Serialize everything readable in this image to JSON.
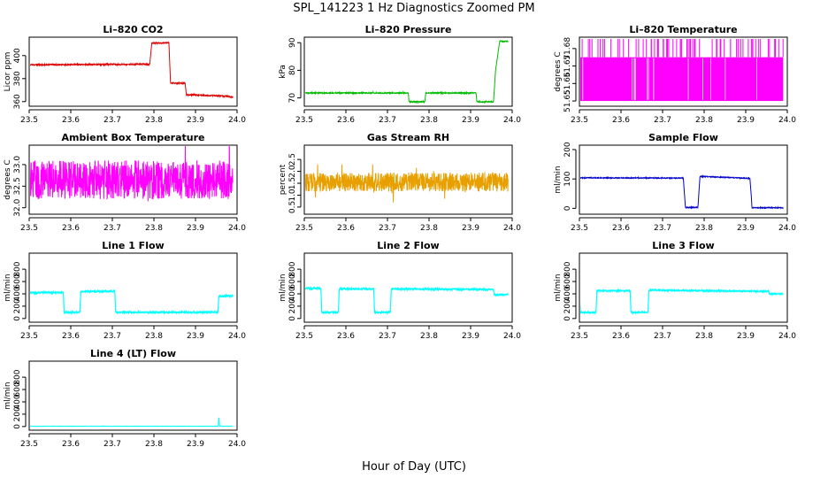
{
  "figure": {
    "title": "SPL_141223  1 Hz Diagnostics Zoomed PM",
    "xlabel": "Hour of Day (UTC)"
  },
  "chart_data": [
    {
      "type": "line",
      "title": "Li–820 CO2",
      "ylabel": "Licor ppm",
      "color": "#e00000",
      "xlim": [
        23.5,
        24.0
      ],
      "ylim": [
        356,
        416
      ],
      "xticks": [
        "23.5",
        "23.6",
        "23.7",
        "23.8",
        "23.9",
        "24.0"
      ],
      "yticks": [
        {
          "v": 360,
          "l": "360"
        },
        {
          "v": 380,
          "l": "380"
        },
        {
          "v": 400,
          "l": "400"
        }
      ],
      "noise": 0.6,
      "x": [
        23.5,
        23.79,
        23.795,
        23.836,
        23.84,
        23.875,
        23.878,
        23.96,
        23.99
      ],
      "y": [
        392,
        392.5,
        411,
        411,
        376,
        376,
        366,
        365,
        364
      ]
    },
    {
      "type": "line",
      "title": "Li–820 Pressure",
      "ylabel": "kPa",
      "color": "#00bb00",
      "xlim": [
        23.5,
        24.0
      ],
      "ylim": [
        67,
        92
      ],
      "xticks": [
        "23.5",
        "23.6",
        "23.7",
        "23.8",
        "23.9",
        "24.0"
      ],
      "yticks": [
        {
          "v": 70,
          "l": "70"
        },
        {
          "v": 80,
          "l": "80"
        },
        {
          "v": 90,
          "l": "90"
        }
      ],
      "noise": 0.2,
      "x": [
        23.5,
        23.75,
        23.752,
        23.79,
        23.792,
        23.913,
        23.915,
        23.955,
        23.96,
        23.97,
        23.99
      ],
      "y": [
        71.8,
        71.8,
        68.6,
        68.6,
        71.8,
        71.8,
        68.6,
        68.6,
        80,
        90.5,
        90.5
      ]
    },
    {
      "type": "line",
      "title": "Li–820 Temperature",
      "ylabel": "degrees C",
      "color": "#ff00ff",
      "xlim": [
        23.5,
        24.0
      ],
      "ylim": [
        51.647,
        51.6865
      ],
      "xticks": [
        "23.5",
        "23.6",
        "23.7",
        "23.8",
        "23.9",
        "24.0"
      ],
      "yticks": [
        {
          "v": 51.65,
          "l": "51.65"
        },
        {
          "v": 51.66,
          "l": "51.66"
        },
        {
          "v": 51.67,
          "l": "51.67"
        },
        {
          "v": 51.68,
          "l": "51.68"
        }
      ],
      "noise": 0,
      "x": [
        23.5,
        23.99
      ],
      "y": [
        51.675,
        51.675
      ],
      "band": [
        51.65,
        51.675
      ],
      "spikes_hi": 51.6855
    },
    {
      "type": "line",
      "title": "Ambient Box Temperature",
      "ylabel": "degrees C",
      "color": "#ff00ff",
      "xlim": [
        23.5,
        24.0
      ],
      "ylim": [
        31.85,
        33.45
      ],
      "xticks": [
        "23.5",
        "23.6",
        "23.7",
        "23.8",
        "23.9",
        "24.0"
      ],
      "yticks": [
        {
          "v": 32.0,
          "l": "32.0"
        },
        {
          "v": 32.5,
          "l": "32.5"
        },
        {
          "v": 33.0,
          "l": "33.0"
        }
      ],
      "noise": 0.45,
      "x": [
        23.5,
        23.99
      ],
      "y": [
        32.65,
        32.65
      ]
    },
    {
      "type": "line",
      "title": "Gas Stream RH",
      "ylabel": "percent",
      "color": "#e8a000",
      "xlim": [
        23.5,
        24.0
      ],
      "ylim": [
        0.2,
        3.1
      ],
      "xticks": [
        "23.5",
        "23.6",
        "23.7",
        "23.8",
        "23.9",
        "24.0"
      ],
      "yticks": [
        {
          "v": 0.5,
          "l": "0.5"
        },
        {
          "v": 1.0,
          "l": "1.0"
        },
        {
          "v": 1.5,
          "l": "1.5"
        },
        {
          "v": 2.0,
          "l": "2.0"
        },
        {
          "v": 2.5,
          "l": "2.5"
        }
      ],
      "noise": 0.4,
      "x": [
        23.5,
        23.99
      ],
      "y": [
        1.55,
        1.55
      ]
    },
    {
      "type": "line",
      "title": "Sample Flow",
      "ylabel": "ml/min",
      "color": "#0000cc",
      "xlim": [
        23.5,
        24.0
      ],
      "ylim": [
        -20,
        215
      ],
      "xticks": [
        "23.5",
        "23.6",
        "23.7",
        "23.8",
        "23.9",
        "24.0"
      ],
      "yticks": [
        {
          "v": 0,
          "l": "0"
        },
        {
          "v": 100,
          "l": "100"
        },
        {
          "v": 200,
          "l": "200"
        }
      ],
      "noise": 1.5,
      "x": [
        23.5,
        23.75,
        23.752,
        23.755,
        23.785,
        23.79,
        23.91,
        23.913,
        23.915,
        23.99
      ],
      "y": [
        104,
        103,
        60,
        3,
        3,
        109,
        102,
        50,
        2,
        2
      ]
    },
    {
      "type": "line",
      "title": "Line 1 Flow",
      "ylabel": "ml/min",
      "color": "#00ffff",
      "xlim": [
        23.5,
        24.0
      ],
      "ylim": [
        -60,
        1060
      ],
      "xticks": [
        "23.5",
        "23.6",
        "23.7",
        "23.8",
        "23.9",
        "24.0"
      ],
      "yticks": [
        {
          "v": 0,
          "l": "0"
        },
        {
          "v": 200,
          "l": "200"
        },
        {
          "v": 400,
          "l": "400"
        },
        {
          "v": 600,
          "l": "600"
        },
        {
          "v": 800,
          "l": "800"
        }
      ],
      "noise": 12,
      "x": [
        23.5,
        23.5,
        23.502,
        23.582,
        23.584,
        23.622,
        23.624,
        23.706,
        23.708,
        23.954,
        23.956,
        23.99
      ],
      "y": [
        100,
        420,
        420,
        420,
        100,
        100,
        440,
        440,
        100,
        100,
        360,
        370
      ]
    },
    {
      "type": "line",
      "title": "Line 2 Flow",
      "ylabel": "ml/min",
      "color": "#00ffff",
      "xlim": [
        23.5,
        24.0
      ],
      "ylim": [
        -60,
        1060
      ],
      "xticks": [
        "23.5",
        "23.6",
        "23.7",
        "23.8",
        "23.9",
        "24.0"
      ],
      "yticks": [
        {
          "v": 0,
          "l": "0"
        },
        {
          "v": 200,
          "l": "200"
        },
        {
          "v": 400,
          "l": "400"
        },
        {
          "v": 600,
          "l": "600"
        },
        {
          "v": 800,
          "l": "800"
        }
      ],
      "noise": 12,
      "x": [
        23.5,
        23.54,
        23.542,
        23.582,
        23.584,
        23.667,
        23.669,
        23.707,
        23.709,
        23.955,
        23.957,
        23.99
      ],
      "y": [
        490,
        490,
        100,
        100,
        480,
        480,
        100,
        100,
        480,
        470,
        380,
        390
      ]
    },
    {
      "type": "line",
      "title": "Line 3 Flow",
      "ylabel": "ml/min",
      "color": "#00ffff",
      "xlim": [
        23.5,
        24.0
      ],
      "ylim": [
        -60,
        1060
      ],
      "xticks": [
        "23.5",
        "23.6",
        "23.7",
        "23.8",
        "23.9",
        "24.0"
      ],
      "yticks": [
        {
          "v": 0,
          "l": "0"
        },
        {
          "v": 200,
          "l": "200"
        },
        {
          "v": 400,
          "l": "400"
        },
        {
          "v": 600,
          "l": "600"
        },
        {
          "v": 800,
          "l": "800"
        }
      ],
      "noise": 10,
      "x": [
        23.5,
        23.5,
        23.502,
        23.54,
        23.542,
        23.622,
        23.624,
        23.665,
        23.667,
        23.955,
        23.957,
        23.99
      ],
      "y": [
        420,
        420,
        100,
        100,
        450,
        450,
        100,
        100,
        460,
        440,
        400,
        400
      ]
    },
    {
      "type": "line",
      "title": "Line 4 (LT) Flow",
      "ylabel": "ml/min",
      "color": "#00ffff",
      "xlim": [
        23.5,
        24.0
      ],
      "ylim": [
        -60,
        1060
      ],
      "xticks": [
        "23.5",
        "23.6",
        "23.7",
        "23.8",
        "23.9",
        "24.0"
      ],
      "yticks": [
        {
          "v": 0,
          "l": "0"
        },
        {
          "v": 200,
          "l": "200"
        },
        {
          "v": 400,
          "l": "400"
        },
        {
          "v": 600,
          "l": "600"
        },
        {
          "v": 800,
          "l": "800"
        }
      ],
      "noise": 2,
      "x": [
        23.5,
        23.955,
        23.956,
        23.958,
        23.96,
        23.99
      ],
      "y": [
        5,
        5,
        160,
        5,
        5,
        5
      ]
    }
  ]
}
